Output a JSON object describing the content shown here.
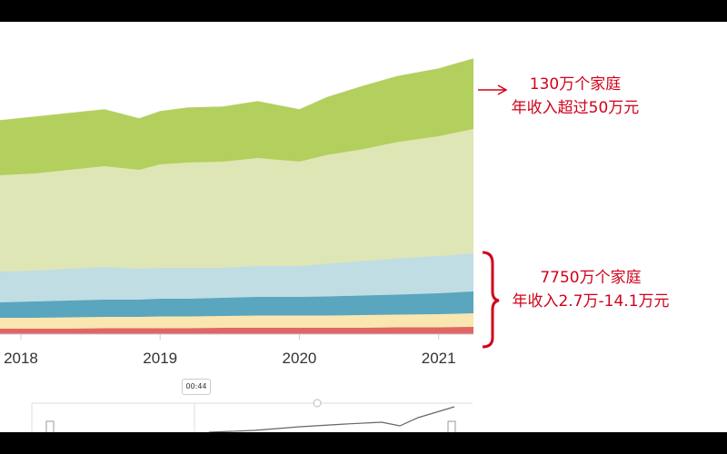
{
  "chart_data": {
    "type": "area",
    "stacked": true,
    "x_ticks": [
      "2018",
      "2019",
      "2020",
      "2021"
    ],
    "x": [
      2017.85,
      2018.1,
      2018.35,
      2018.6,
      2018.85,
      2019.0,
      2019.2,
      2019.45,
      2019.7,
      2020.0,
      2020.2,
      2020.45,
      2020.7,
      2021.0,
      2021.25
    ],
    "series": [
      {
        "color": "#e06666",
        "values": [
          6,
          6,
          6,
          6.5,
          6.5,
          6.5,
          6.5,
          7,
          7,
          7,
          7,
          7,
          7.5,
          7.5,
          8
        ]
      },
      {
        "color": "#f9e6b0",
        "values": [
          12,
          12,
          12.5,
          12.5,
          12.5,
          13,
          13,
          13,
          13.5,
          13.5,
          13.5,
          14,
          14,
          14.5,
          15
        ]
      },
      {
        "color": "#5aa6bf",
        "values": [
          17,
          18,
          18.5,
          19,
          19,
          19.5,
          19.5,
          20,
          20.5,
          20.5,
          21,
          21.5,
          22,
          23,
          24
        ]
      },
      {
        "color": "#c0dde4",
        "values": [
          34,
          34,
          35,
          36,
          34,
          34,
          34,
          33,
          34,
          34,
          36,
          38,
          40,
          41,
          42
        ]
      },
      {
        "color": "#dfe6b5",
        "values": [
          106,
          107,
          109,
          111,
          109,
          114,
          116,
          117,
          119,
          115,
          120,
          123,
          128,
          132,
          137
        ]
      },
      {
        "color": "#b3cf5d",
        "values": [
          60,
          62,
          62,
          62,
          56,
          58,
          60,
          60,
          62,
          57,
          63,
          69,
          72,
          74,
          77
        ]
      }
    ]
  },
  "annotations": {
    "top_line1": "130万个家庭",
    "top_line2": "年收入超过50万元",
    "bottom_line1": "7750万个家庭",
    "bottom_line2": "年收入2.7万-14.1万元"
  },
  "player": {
    "time_badge": "00:44",
    "slider_position": 0.66
  },
  "colors": {
    "annotation": "#d0021b"
  }
}
